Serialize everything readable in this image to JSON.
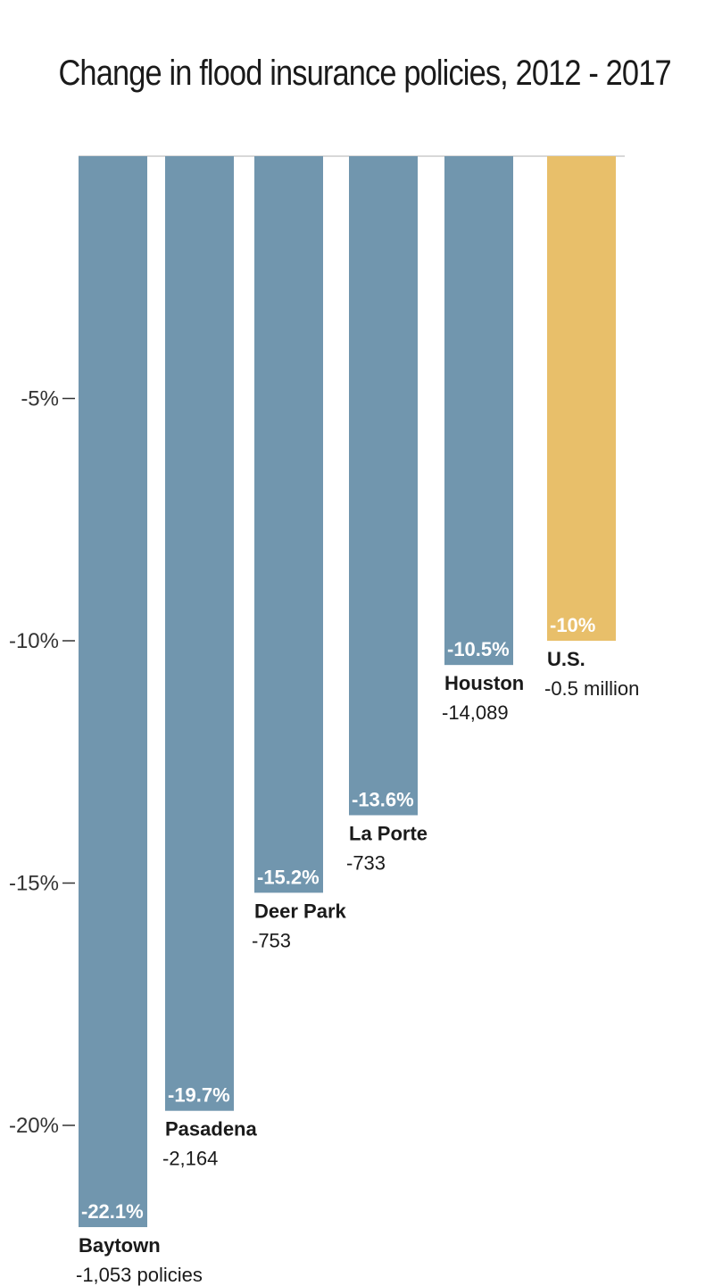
{
  "chart_data": {
    "type": "bar",
    "title": "Change in flood insurance policies, 2012 - 2017",
    "xlabel": "",
    "ylabel": "",
    "ylim": [
      -22.8,
      0
    ],
    "yticks": [
      -5,
      -10,
      -15,
      -20
    ],
    "ytick_labels": [
      "-5%",
      "-10%",
      "-15%",
      "-20%"
    ],
    "grid": false,
    "categories": [
      "Baytown",
      "Pasadena",
      "Deer Park",
      "La Porte",
      "Houston",
      "U.S."
    ],
    "values": [
      -22.1,
      -19.7,
      -15.2,
      -13.6,
      -10.5,
      -10
    ],
    "value_labels": [
      "-22.1%",
      "-19.7%",
      "-15.2%",
      "-13.6%",
      "-10.5%",
      "-10%"
    ],
    "count_labels": [
      "-1,053 policies",
      "-2,164",
      "-753",
      "-733",
      "-14,089",
      "-0.5 million"
    ],
    "colors": [
      "#7196ae",
      "#7196ae",
      "#7196ae",
      "#7196ae",
      "#7196ae",
      "#e8bf6a"
    ]
  }
}
